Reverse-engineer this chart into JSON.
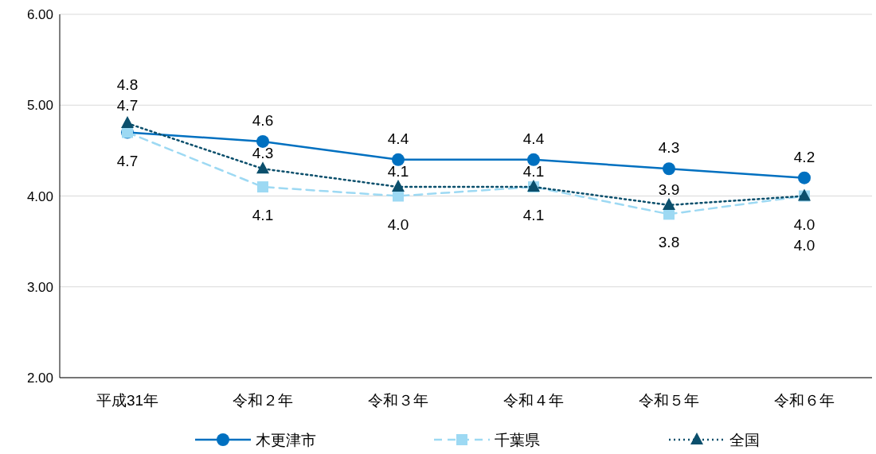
{
  "chart_data": {
    "type": "line",
    "categories": [
      "平成31年",
      "令和２年",
      "令和３年",
      "令和４年",
      "令和５年",
      "令和６年"
    ],
    "series": [
      {
        "name": "木更津市",
        "color": "#0070c0",
        "marker": "circle",
        "line_style": "solid",
        "values": [
          4.7,
          4.6,
          4.4,
          4.4,
          4.3,
          4.2
        ],
        "value_labels": [
          "4.7",
          "4.6",
          "4.4",
          "4.4",
          "4.3",
          "4.2"
        ]
      },
      {
        "name": "千葉県",
        "color": "#9dd9f3",
        "marker": "square",
        "line_style": "dashed",
        "values": [
          4.7,
          4.1,
          4.0,
          4.1,
          3.8,
          4.0
        ],
        "value_labels": [
          "4.7",
          "4.1",
          "4.0",
          "4.1",
          "3.8",
          "4.0"
        ]
      },
      {
        "name": "全国",
        "color": "#0b4f6c",
        "marker": "triangle",
        "line_style": "dotted",
        "values": [
          4.8,
          4.3,
          4.1,
          4.1,
          3.9,
          4.0
        ],
        "value_labels": [
          "4.8",
          "4.3",
          "4.1",
          "4.1",
          "3.9",
          "4.0"
        ]
      }
    ],
    "ylim": [
      2,
      6
    ],
    "yticks": [
      {
        "value": 2,
        "label": "2.00"
      },
      {
        "value": 3,
        "label": "3.00"
      },
      {
        "value": 4,
        "label": "4.00"
      },
      {
        "value": 5,
        "label": "5.00"
      },
      {
        "value": 6,
        "label": "6.00"
      }
    ],
    "grid": "y",
    "legend": "bottom"
  }
}
